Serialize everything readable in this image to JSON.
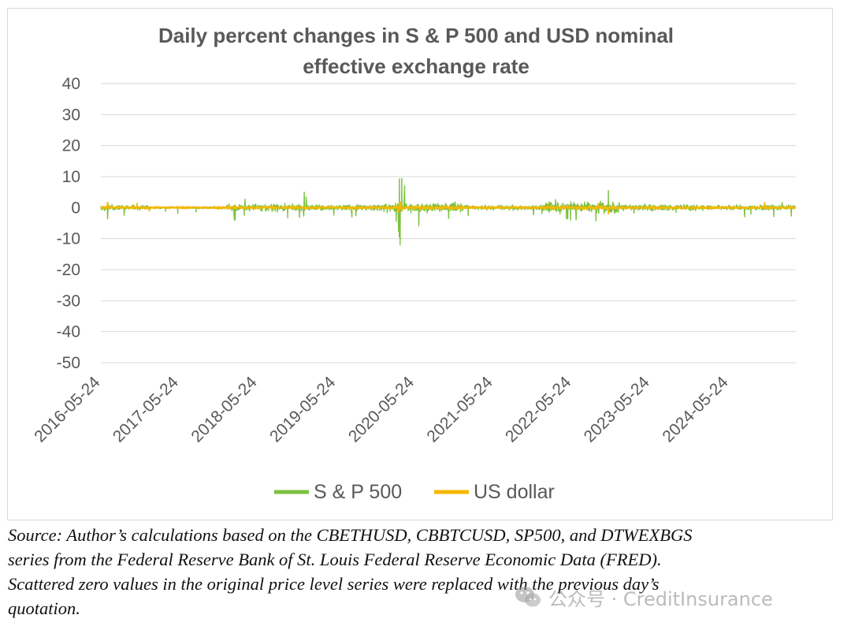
{
  "chart_data": {
    "type": "line",
    "title_lines": [
      "Daily percent changes in S & P 500 and USD nominal",
      "effective exchange rate"
    ],
    "yticks": [
      40,
      30,
      20,
      10,
      0,
      -10,
      -20,
      -30,
      -40,
      -50
    ],
    "ylim": [
      -50,
      40
    ],
    "x_start": "2016-05-24",
    "x_end": "2025-03-31",
    "xticks": [
      "2016-05-24",
      "2017-05-24",
      "2018-05-24",
      "2019-05-24",
      "2020-05-24",
      "2021-05-24",
      "2022-05-24",
      "2023-05-24",
      "2024-05-24"
    ],
    "grid": "horizontal",
    "legend_position": "bottom",
    "series": [
      {
        "name": "S & P 500",
        "color": "#7cc142",
        "points": [
          [
            "2016-05-24",
            0.5
          ],
          [
            "2016-06-10",
            -1.0
          ],
          [
            "2016-06-24",
            -3.6
          ],
          [
            "2016-07-15",
            1.0
          ],
          [
            "2016-09-09",
            -2.5
          ],
          [
            "2016-11-09",
            1.2
          ],
          [
            "2017-03-21",
            -1.2
          ],
          [
            "2017-05-17",
            -1.8
          ],
          [
            "2017-08-10",
            -1.4
          ],
          [
            "2018-02-02",
            -2.1
          ],
          [
            "2018-02-05",
            -4.1
          ],
          [
            "2018-02-08",
            -3.8
          ],
          [
            "2018-03-22",
            -2.5
          ],
          [
            "2018-03-26",
            2.7
          ],
          [
            "2018-10-10",
            -3.3
          ],
          [
            "2018-12-04",
            -3.2
          ],
          [
            "2018-12-24",
            -2.7
          ],
          [
            "2018-12-26",
            5.0
          ],
          [
            "2019-01-04",
            3.4
          ],
          [
            "2019-05-13",
            -2.4
          ],
          [
            "2019-08-05",
            -3.0
          ],
          [
            "2019-08-23",
            -2.6
          ],
          [
            "2020-02-27",
            -4.4
          ],
          [
            "2020-03-09",
            -7.6
          ],
          [
            "2020-03-12",
            -9.5
          ],
          [
            "2020-03-13",
            9.3
          ],
          [
            "2020-03-16",
            -12.0
          ],
          [
            "2020-03-24",
            9.4
          ],
          [
            "2020-04-06",
            7.0
          ],
          [
            "2020-06-11",
            -5.9
          ],
          [
            "2020-10-28",
            -3.5
          ],
          [
            "2020-11-09",
            1.2
          ],
          [
            "2021-01-27",
            -2.6
          ],
          [
            "2021-11-26",
            -2.3
          ],
          [
            "2022-01-05",
            -1.9
          ],
          [
            "2022-03-09",
            2.6
          ],
          [
            "2022-04-29",
            -3.6
          ],
          [
            "2022-05-05",
            -3.6
          ],
          [
            "2022-05-18",
            -4.0
          ],
          [
            "2022-06-13",
            -3.9
          ],
          [
            "2022-09-13",
            -4.3
          ],
          [
            "2022-11-10",
            5.5
          ],
          [
            "2023-03-09",
            -1.8
          ],
          [
            "2023-09-21",
            -1.6
          ],
          [
            "2024-08-05",
            -3.0
          ],
          [
            "2024-09-03",
            -2.1
          ],
          [
            "2024-12-18",
            -2.9
          ],
          [
            "2025-01-27",
            1.6
          ],
          [
            "2025-03-10",
            -2.7
          ]
        ]
      },
      {
        "name": "US dollar",
        "color": "#f5b800",
        "points": [
          [
            "2016-06-24",
            1.7
          ],
          [
            "2016-11-09",
            1.3
          ],
          [
            "2017-01-04",
            -1.0
          ],
          [
            "2018-02-05",
            0.7
          ],
          [
            "2019-08-05",
            -0.8
          ],
          [
            "2020-03-09",
            -1.3
          ],
          [
            "2020-03-13",
            1.6
          ],
          [
            "2020-03-19",
            1.7
          ],
          [
            "2020-03-24",
            -1.2
          ],
          [
            "2022-09-23",
            1.2
          ],
          [
            "2022-11-10",
            -2.0
          ],
          [
            "2024-11-06",
            1.6
          ]
        ]
      }
    ]
  },
  "source_lines": [
    "Source: Author’s calculations based on the CBETHUSD, CBBTCUSD, SP500, and DTWEXBGS",
    "series from the Federal Reserve Bank of St. Louis Federal Reserve Economic Data (FRED).",
    "Scattered zero values in the original price level series were replaced with the previous day’s",
    "quotation."
  ],
  "watermark": {
    "text": "公众号 · CreditInsurance",
    "icon": "wechat-icon"
  }
}
